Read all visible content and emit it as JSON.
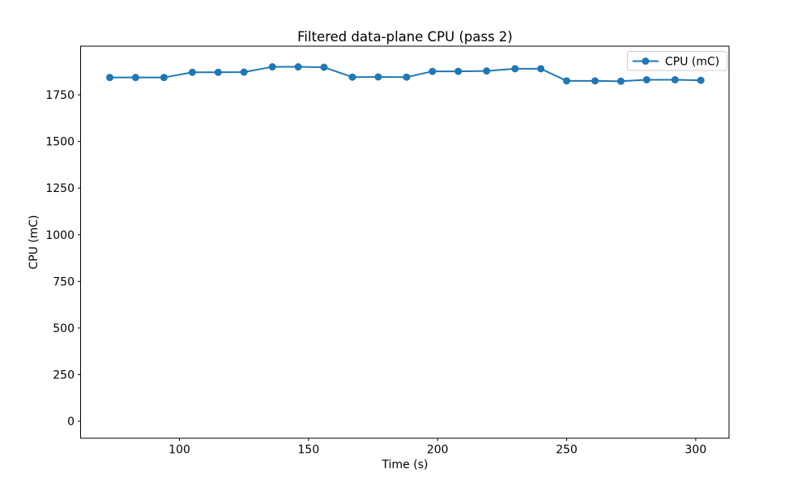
{
  "figure": {
    "background": "#ffffff",
    "frame_color": "#000000",
    "accent_color": "#1f77b4"
  },
  "chart_data": {
    "type": "line",
    "title": "Filtered data-plane CPU (pass 2)",
    "xlabel": "Time (s)",
    "ylabel": "CPU (mC)",
    "xlim": [
      61.7,
      312.9
    ],
    "ylim": [
      -91,
      2011
    ],
    "xticks": [
      100,
      150,
      200,
      250,
      300
    ],
    "yticks": [
      0,
      250,
      500,
      750,
      1000,
      1250,
      1500,
      1750
    ],
    "grid": false,
    "legend": {
      "position": "upper right",
      "entries": [
        "CPU (mC)"
      ]
    },
    "series": [
      {
        "name": "CPU (mC)",
        "color": "#1f77b4",
        "marker": "circle",
        "x": [
          73,
          83,
          94,
          105,
          115,
          125,
          136,
          146,
          156,
          167,
          177,
          188,
          198,
          208,
          219,
          230,
          240,
          250,
          261,
          271,
          281,
          292,
          302
        ],
        "y": [
          1843,
          1843,
          1843,
          1871,
          1871,
          1872,
          1900,
          1900,
          1898,
          1845,
          1846,
          1845,
          1876,
          1876,
          1878,
          1890,
          1890,
          1825,
          1825,
          1823,
          1831,
          1831,
          1828
        ]
      }
    ]
  }
}
